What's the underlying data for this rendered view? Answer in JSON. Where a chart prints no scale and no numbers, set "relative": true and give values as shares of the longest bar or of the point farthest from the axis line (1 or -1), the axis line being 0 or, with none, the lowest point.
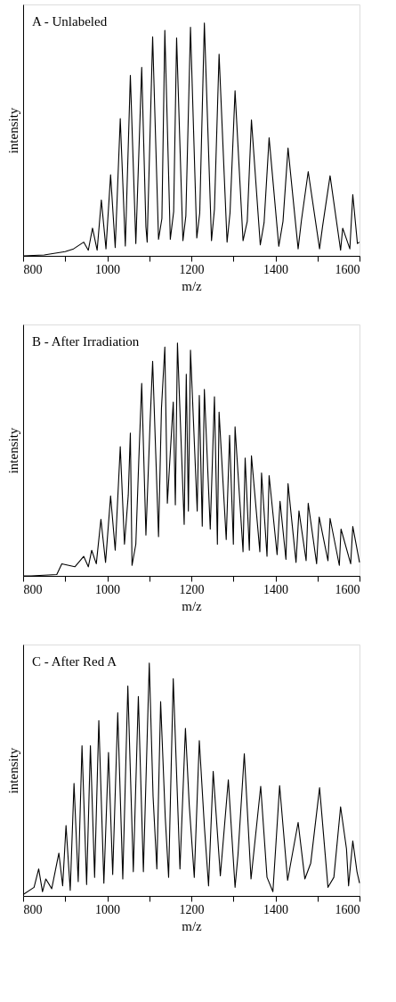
{
  "chart_data": [
    {
      "type": "line",
      "title": "A - Unlabeled",
      "xlabel": "m/z",
      "ylabel": "intensity",
      "relative": true,
      "xlim": [
        800,
        1600
      ],
      "xticks": [
        800,
        {
          "value": 900,
          "label": null
        },
        1000,
        {
          "value": 1100,
          "label": null
        },
        1200,
        {
          "value": 1300,
          "label": null
        },
        1400,
        {
          "value": 1500,
          "label": null
        },
        1600
      ],
      "grid": false,
      "marker": "none",
      "line_style": "solid",
      "series": [
        {
          "color": "#000000",
          "x": [
            800,
            850,
            900,
            920,
            944,
            955,
            965,
            976,
            986,
            997,
            1008,
            1019,
            1031,
            1043,
            1055,
            1068,
            1082,
            1092,
            1095,
            1108,
            1122,
            1130,
            1137,
            1150,
            1158,
            1165,
            1180,
            1187,
            1198,
            1213,
            1220,
            1231,
            1248,
            1255,
            1266,
            1285,
            1292,
            1304,
            1323,
            1333,
            1343,
            1364,
            1373,
            1385,
            1408,
            1418,
            1430,
            1454,
            1462,
            1478,
            1505,
            1512,
            1530,
            1555,
            1560,
            1577,
            1584,
            1595,
            1600
          ],
          "values": [
            0.0,
            0.004,
            0.018,
            0.03,
            0.059,
            0.024,
            0.119,
            0.024,
            0.24,
            0.03,
            0.348,
            0.036,
            0.59,
            0.042,
            0.775,
            0.053,
            0.81,
            0.125,
            0.059,
            0.941,
            0.071,
            0.16,
            0.969,
            0.071,
            0.19,
            0.936,
            0.065,
            0.172,
            0.982,
            0.077,
            0.184,
            1.0,
            0.065,
            0.2,
            0.866,
            0.059,
            0.184,
            0.709,
            0.065,
            0.148,
            0.584,
            0.047,
            0.142,
            0.507,
            0.041,
            0.148,
            0.463,
            0.03,
            0.154,
            0.362,
            0.03,
            0.125,
            0.344,
            0.024,
            0.119,
            0.03,
            0.263,
            0.053,
            0.059
          ]
        }
      ]
    },
    {
      "type": "line",
      "title": "B - After Irradiation",
      "xlabel": "m/z",
      "ylabel": "intensity",
      "relative": true,
      "xlim": [
        800,
        1600
      ],
      "xticks": [
        800,
        {
          "value": 900,
          "label": null
        },
        1000,
        {
          "value": 1100,
          "label": null
        },
        1200,
        {
          "value": 1300,
          "label": null
        },
        1400,
        {
          "value": 1500,
          "label": null
        },
        1600
      ],
      "grid": false,
      "marker": "none",
      "line_style": "solid",
      "series": [
        {
          "color": "#000000",
          "x": [
            800,
            819,
            880,
            892,
            923,
            944,
            955,
            963,
            974,
            985,
            996,
            1008,
            1019,
            1031,
            1041,
            1050,
            1055,
            1059,
            1068,
            1075,
            1082,
            1092,
            1102,
            1108,
            1122,
            1129,
            1137,
            1143,
            1157,
            1162,
            1167,
            1183,
            1188,
            1193,
            1198,
            1214,
            1219,
            1226,
            1231,
            1245,
            1255,
            1262,
            1266,
            1283,
            1291,
            1300,
            1304,
            1323,
            1328,
            1338,
            1343,
            1363,
            1367,
            1380,
            1385,
            1404,
            1411,
            1425,
            1430,
            1449,
            1456,
            1473,
            1478,
            1498,
            1504,
            1525,
            1530,
            1552,
            1556,
            1579,
            1584,
            1600
          ],
          "values": [
            0.0,
            0.0,
            0.006,
            0.052,
            0.039,
            0.084,
            0.039,
            0.11,
            0.052,
            0.243,
            0.058,
            0.344,
            0.11,
            0.555,
            0.136,
            0.347,
            0.614,
            0.045,
            0.136,
            0.494,
            0.827,
            0.175,
            0.662,
            0.922,
            0.169,
            0.721,
            0.983,
            0.312,
            0.747,
            0.305,
            1.0,
            0.221,
            0.866,
            0.279,
            0.97,
            0.279,
            0.775,
            0.214,
            0.801,
            0.201,
            0.77,
            0.136,
            0.704,
            0.156,
            0.604,
            0.136,
            0.64,
            0.104,
            0.506,
            0.11,
            0.516,
            0.104,
            0.442,
            0.084,
            0.431,
            0.091,
            0.321,
            0.071,
            0.396,
            0.058,
            0.279,
            0.065,
            0.312,
            0.052,
            0.253,
            0.065,
            0.247,
            0.045,
            0.201,
            0.052,
            0.212,
            0.058
          ]
        }
      ]
    },
    {
      "type": "line",
      "title": "C - After Red A",
      "xlabel": "m/z",
      "ylabel": "intensity",
      "relative": true,
      "xlim": [
        800,
        1600
      ],
      "xticks": [
        800,
        {
          "value": 900,
          "label": null
        },
        1000,
        {
          "value": 1100,
          "label": null
        },
        1200,
        {
          "value": 1300,
          "label": null
        },
        1400,
        {
          "value": 1500,
          "label": null
        },
        1600
      ],
      "grid": false,
      "marker": "none",
      "line_style": "solid",
      "series": [
        {
          "color": "#000000",
          "x": [
            800,
            826,
            837,
            846,
            854,
            868,
            885,
            894,
            902,
            912,
            921,
            931,
            940,
            951,
            960,
            970,
            980,
            992,
            1003,
            1013,
            1025,
            1037,
            1049,
            1062,
            1074,
            1086,
            1100,
            1109,
            1118,
            1127,
            1138,
            1146,
            1157,
            1173,
            1186,
            1195,
            1207,
            1219,
            1231,
            1241,
            1252,
            1269,
            1288,
            1304,
            1311,
            1326,
            1342,
            1365,
            1380,
            1394,
            1410,
            1429,
            1454,
            1470,
            1484,
            1505,
            1525,
            1539,
            1555,
            1569,
            1574,
            1584,
            1594,
            1600
          ],
          "values": [
            0.006,
            0.037,
            0.116,
            0.018,
            0.073,
            0.031,
            0.184,
            0.043,
            0.302,
            0.024,
            0.483,
            0.061,
            0.645,
            0.049,
            0.645,
            0.08,
            0.753,
            0.055,
            0.616,
            0.092,
            0.787,
            0.073,
            0.902,
            0.104,
            0.857,
            0.104,
            1.0,
            0.428,
            0.116,
            0.835,
            0.337,
            0.08,
            0.933,
            0.116,
            0.72,
            0.392,
            0.08,
            0.667,
            0.3,
            0.043,
            0.535,
            0.086,
            0.499,
            0.037,
            0.177,
            0.611,
            0.073,
            0.471,
            0.08,
            0.018,
            0.474,
            0.067,
            0.316,
            0.073,
            0.141,
            0.465,
            0.037,
            0.08,
            0.383,
            0.202,
            0.043,
            0.236,
            0.104,
            0.055
          ]
        }
      ]
    }
  ]
}
